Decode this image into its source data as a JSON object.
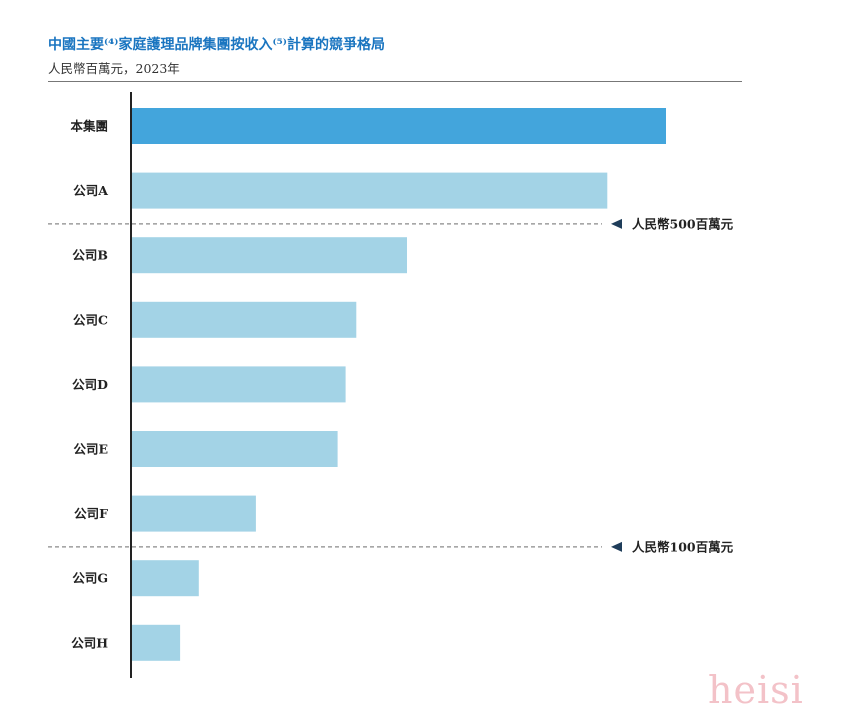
{
  "header": {
    "title": "中國主要⁽⁴⁾家庭護理品牌集團按收入⁽⁵⁾計算的競爭格局",
    "subtitle": "人民幣百萬元，2023年"
  },
  "watermark": "heisi",
  "chart_data": {
    "type": "bar",
    "orientation": "horizontal",
    "categories": [
      "本集團",
      "公司A",
      "公司B",
      "公司C",
      "公司D",
      "公司E",
      "公司F",
      "公司G",
      "公司H"
    ],
    "values": [
      1000,
      890,
      515,
      420,
      400,
      385,
      232,
      125,
      90
    ],
    "highlight_index": 0,
    "xlim": [
      0,
      1000
    ],
    "thresholds": [
      {
        "label": "人民幣500百萬元",
        "after_index": 1
      },
      {
        "label": "人民幣100百萬元",
        "after_index": 6
      }
    ],
    "colors": {
      "highlight": "#43a5dc",
      "bar": "#a3d3e6",
      "axis": "#222222",
      "threshold": "#8a8a8a",
      "label": "#222222"
    }
  }
}
